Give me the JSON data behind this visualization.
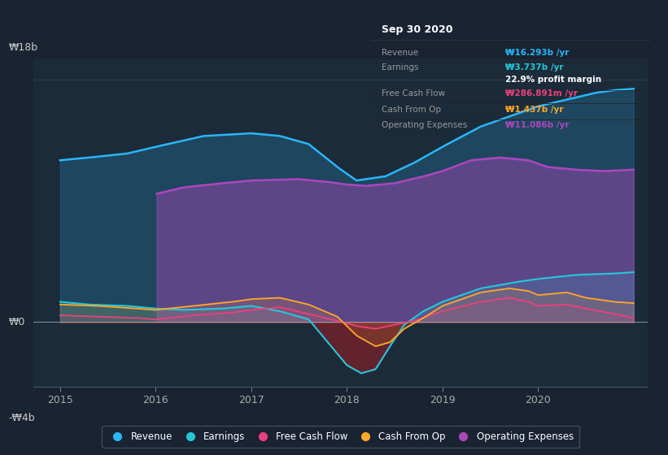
{
  "bg_color": "#1a2332",
  "plot_bg_color": "#1c2b3a",
  "colors": {
    "revenue": "#29b6f6",
    "earnings": "#26c6da",
    "free_cash_flow": "#ec407a",
    "cash_from_op": "#ffa726",
    "operating_expenses": "#ab47bc"
  },
  "ylabel_top": "₩18b",
  "ylabel_zero": "₩0",
  "ylabel_bottom": "-₩4b",
  "x_ticks": [
    2015,
    2016,
    2017,
    2018,
    2019,
    2020
  ],
  "tooltip_title": "Sep 30 2020",
  "tooltip_rows": [
    {
      "label": "Revenue",
      "value": "₩16.293b /yr",
      "color": "#29b6f6"
    },
    {
      "label": "Earnings",
      "value": "₩3.737b /yr",
      "color": "#26c6da"
    },
    {
      "label": "",
      "value": "22.9% profit margin",
      "color": "#ffffff"
    },
    {
      "label": "Free Cash Flow",
      "value": "₩286.891m /yr",
      "color": "#ec407a"
    },
    {
      "label": "Cash From Op",
      "value": "₩1.437b /yr",
      "color": "#ffa726"
    },
    {
      "label": "Operating Expenses",
      "value": "₩11.086b /yr",
      "color": "#ab47bc"
    }
  ],
  "legend": [
    {
      "label": "Revenue",
      "color": "#29b6f6"
    },
    {
      "label": "Earnings",
      "color": "#26c6da"
    },
    {
      "label": "Free Cash Flow",
      "color": "#ec407a"
    },
    {
      "label": "Cash From Op",
      "color": "#ffa726"
    },
    {
      "label": "Operating Expenses",
      "color": "#ab47bc"
    }
  ]
}
